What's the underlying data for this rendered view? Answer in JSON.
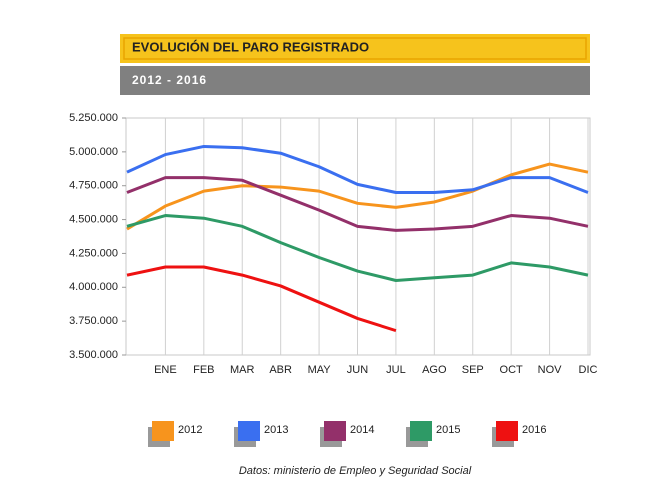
{
  "chart_data": {
    "type": "line",
    "title": "EVOLUCIÓN DEL PARO REGISTRADO",
    "subtitle": "2012 - 2016",
    "source": "Datos: ministerio de Empleo y Seguridad Social",
    "categories": [
      null,
      "ENE",
      "FEB",
      "MAR",
      "ABR",
      "MAY",
      "JUN",
      "JUL",
      "AGO",
      "SEP",
      "OCT",
      "NOV",
      "DIC"
    ],
    "series": [
      {
        "name": "2012",
        "color": "#f7941d",
        "values": [
          4430000,
          4600000,
          4710000,
          4750000,
          4740000,
          4710000,
          4620000,
          4590000,
          4630000,
          4710000,
          4830000,
          4910000,
          4850000
        ]
      },
      {
        "name": "2013",
        "color": "#3a6ff0",
        "values": [
          4850000,
          4980000,
          5040000,
          5030000,
          4990000,
          4890000,
          4760000,
          4700000,
          4700000,
          4720000,
          4810000,
          4810000,
          4700000
        ]
      },
      {
        "name": "2014",
        "color": "#93306a",
        "values": [
          4700000,
          4810000,
          4810000,
          4790000,
          4680000,
          4570000,
          4450000,
          4420000,
          4430000,
          4450000,
          4530000,
          4510000,
          4450000
        ]
      },
      {
        "name": "2015",
        "color": "#2e9a66",
        "values": [
          4450000,
          4530000,
          4510000,
          4450000,
          4330000,
          4220000,
          4120000,
          4050000,
          4070000,
          4090000,
          4180000,
          4150000,
          4090000
        ]
      },
      {
        "name": "2016",
        "color": "#ee1111",
        "values": [
          4090000,
          4150000,
          4150000,
          4090000,
          4010000,
          3890000,
          3770000,
          3680000,
          null,
          null,
          null,
          null,
          null
        ]
      }
    ],
    "ylim": [
      3500000,
      5250000
    ],
    "yticks": [
      {
        "value": 3500000,
        "label": "3.500.000"
      },
      {
        "value": 3750000,
        "label": "3.750.000"
      },
      {
        "value": 4000000,
        "label": "4.000.000"
      },
      {
        "value": 4250000,
        "label": "4.250.000"
      },
      {
        "value": 4500000,
        "label": "4.500.000"
      },
      {
        "value": 4750000,
        "label": "4.750.000"
      },
      {
        "value": 5000000,
        "label": "5.000.000"
      },
      {
        "value": 5250000,
        "label": "5.250.000"
      }
    ],
    "legend": "bottom"
  }
}
